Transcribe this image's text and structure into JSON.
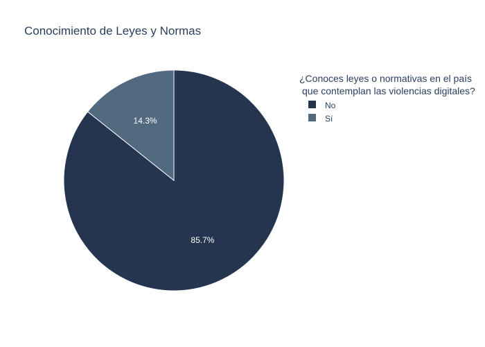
{
  "chart_data": {
    "type": "pie",
    "title": "Conocimiento de Leyes y Normas",
    "legend": {
      "title_lines": [
        "¿Conoces leyes o normativas en el país",
        "que contemplan las violencias digitales?"
      ],
      "placement": "top-right"
    },
    "slices": [
      {
        "label": "No",
        "value": 85.7,
        "text": "85.7%",
        "color": "#253550"
      },
      {
        "label": "Sí",
        "value": 14.3,
        "text": "14.3%",
        "color": "#526a80"
      }
    ]
  }
}
